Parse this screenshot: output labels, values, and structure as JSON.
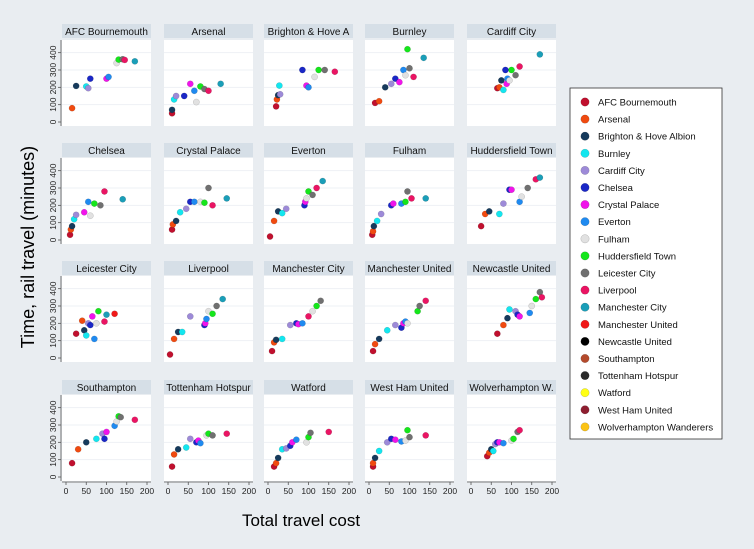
{
  "chart_data": {
    "type": "scatter",
    "layout": "small-multiples",
    "xlabel": "Total travel cost",
    "ylabel": "Time, rail travel (minutes)",
    "x_ticks": [
      0,
      50,
      100,
      150,
      200
    ],
    "y_ticks": [
      0,
      100,
      200,
      300,
      400
    ],
    "xlim": [
      0,
      200
    ],
    "ylim": [
      0,
      450
    ],
    "legend_position": "right",
    "teams": [
      {
        "name": "AFC Bournemouth",
        "color": "#c0102e"
      },
      {
        "name": "Arsenal",
        "color": "#f04a10"
      },
      {
        "name": "Brighton & Hove Albion",
        "color": "#163a5c"
      },
      {
        "name": "Burnley",
        "color": "#13e6ef"
      },
      {
        "name": "Cardiff City",
        "color": "#9d8ad8"
      },
      {
        "name": "Chelsea",
        "color": "#1a27c6"
      },
      {
        "name": "Crystal Palace",
        "color": "#f014ea"
      },
      {
        "name": "Everton",
        "color": "#1f8af0"
      },
      {
        "name": "Fulham",
        "color": "#e1e1e1"
      },
      {
        "name": "Huddersfield Town",
        "color": "#15e61b"
      },
      {
        "name": "Leicester City",
        "color": "#707070"
      },
      {
        "name": "Liverpool",
        "color": "#ea1463"
      },
      {
        "name": "Manchester City",
        "color": "#1a9eb8"
      },
      {
        "name": "Manchester United",
        "color": "#f01818"
      },
      {
        "name": "Newcastle United",
        "color": "#000000"
      },
      {
        "name": "Southampton",
        "color": "#b44a2c"
      },
      {
        "name": "Tottenham Hotspur",
        "color": "#2a2a2a"
      },
      {
        "name": "Watford",
        "color": "#ffff14"
      },
      {
        "name": "West Ham United",
        "color": "#8e1e30"
      },
      {
        "name": "Wolverhampton Wanderers",
        "color": "#fbc316"
      }
    ],
    "panels": [
      {
        "title": "AFC Bournemouth",
        "points": [
          [
            15,
            80
          ],
          [
            25,
            208
          ],
          [
            50,
            205
          ],
          [
            55,
            195
          ],
          [
            60,
            250
          ],
          [
            100,
            250
          ],
          [
            105,
            260
          ],
          [
            125,
            340
          ],
          [
            130,
            360
          ],
          [
            140,
            362
          ],
          [
            145,
            358
          ],
          [
            170,
            350
          ]
        ]
      },
      {
        "title": "Arsenal",
        "points": [
          [
            10,
            50
          ],
          [
            10,
            70
          ],
          [
            15,
            130
          ],
          [
            20,
            150
          ],
          [
            40,
            150
          ],
          [
            55,
            220
          ],
          [
            65,
            180
          ],
          [
            70,
            115
          ],
          [
            80,
            205
          ],
          [
            90,
            190
          ],
          [
            100,
            180
          ],
          [
            130,
            220
          ]
        ]
      },
      {
        "title": "Brighton & Hove A",
        "points": [
          [
            20,
            90
          ],
          [
            22,
            130
          ],
          [
            25,
            155
          ],
          [
            28,
            210
          ],
          [
            30,
            160
          ],
          [
            85,
            300
          ],
          [
            95,
            210
          ],
          [
            100,
            200
          ],
          [
            115,
            260
          ],
          [
            125,
            300
          ],
          [
            140,
            300
          ],
          [
            165,
            290
          ]
        ]
      },
      {
        "title": "Burnley",
        "points": [
          [
            15,
            110
          ],
          [
            25,
            120
          ],
          [
            40,
            200
          ],
          [
            55,
            220
          ],
          [
            65,
            250
          ],
          [
            75,
            230
          ],
          [
            85,
            300
          ],
          [
            90,
            270
          ],
          [
            95,
            420
          ],
          [
            100,
            310
          ],
          [
            110,
            260
          ],
          [
            135,
            370
          ]
        ]
      },
      {
        "title": "Cardiff City",
        "points": [
          [
            65,
            195
          ],
          [
            70,
            200
          ],
          [
            75,
            240
          ],
          [
            80,
            185
          ],
          [
            85,
            300
          ],
          [
            88,
            220
          ],
          [
            90,
            250
          ],
          [
            95,
            240
          ],
          [
            100,
            300
          ],
          [
            110,
            270
          ],
          [
            120,
            320
          ],
          [
            170,
            390
          ]
        ]
      },
      {
        "title": "Chelsea",
        "points": [
          [
            10,
            30
          ],
          [
            12,
            60
          ],
          [
            15,
            80
          ],
          [
            20,
            120
          ],
          [
            25,
            145
          ],
          [
            45,
            160
          ],
          [
            55,
            220
          ],
          [
            60,
            140
          ],
          [
            70,
            210
          ],
          [
            85,
            200
          ],
          [
            95,
            280
          ],
          [
            140,
            235
          ]
        ]
      },
      {
        "title": "Crystal Palace",
        "points": [
          [
            10,
            60
          ],
          [
            12,
            90
          ],
          [
            20,
            110
          ],
          [
            30,
            160
          ],
          [
            45,
            180
          ],
          [
            55,
            220
          ],
          [
            65,
            220
          ],
          [
            80,
            220
          ],
          [
            90,
            215
          ],
          [
            100,
            300
          ],
          [
            110,
            200
          ],
          [
            145,
            240
          ]
        ]
      },
      {
        "title": "Everton",
        "points": [
          [
            5,
            20
          ],
          [
            15,
            110
          ],
          [
            25,
            165
          ],
          [
            35,
            155
          ],
          [
            45,
            180
          ],
          [
            90,
            200
          ],
          [
            92,
            220
          ],
          [
            95,
            240
          ],
          [
            100,
            280
          ],
          [
            110,
            260
          ],
          [
            120,
            300
          ],
          [
            135,
            340
          ]
        ]
      },
      {
        "title": "Fulham",
        "points": [
          [
            8,
            30
          ],
          [
            10,
            50
          ],
          [
            12,
            80
          ],
          [
            20,
            110
          ],
          [
            30,
            150
          ],
          [
            55,
            200
          ],
          [
            60,
            210
          ],
          [
            80,
            210
          ],
          [
            90,
            220
          ],
          [
            95,
            280
          ],
          [
            105,
            240
          ],
          [
            140,
            240
          ]
        ]
      },
      {
        "title": "Huddersfield Town",
        "points": [
          [
            25,
            80
          ],
          [
            35,
            150
          ],
          [
            45,
            165
          ],
          [
            70,
            150
          ],
          [
            80,
            210
          ],
          [
            95,
            290
          ],
          [
            100,
            290
          ],
          [
            120,
            220
          ],
          [
            125,
            250
          ],
          [
            140,
            300
          ],
          [
            160,
            350
          ],
          [
            170,
            360
          ]
        ]
      },
      {
        "title": "Leicester City",
        "points": [
          [
            25,
            140
          ],
          [
            40,
            215
          ],
          [
            45,
            160
          ],
          [
            50,
            130
          ],
          [
            55,
            200
          ],
          [
            60,
            190
          ],
          [
            65,
            240
          ],
          [
            70,
            110
          ],
          [
            75,
            200
          ],
          [
            80,
            270
          ],
          [
            95,
            210
          ],
          [
            100,
            250
          ],
          [
            120,
            255
          ]
        ]
      },
      {
        "title": "Liverpool",
        "points": [
          [
            5,
            20
          ],
          [
            15,
            110
          ],
          [
            25,
            150
          ],
          [
            35,
            150
          ],
          [
            55,
            240
          ],
          [
            90,
            190
          ],
          [
            92,
            200
          ],
          [
            95,
            225
          ],
          [
            100,
            270
          ],
          [
            110,
            255
          ],
          [
            120,
            300
          ],
          [
            135,
            340
          ]
        ]
      },
      {
        "title": "Manchester City",
        "points": [
          [
            10,
            40
          ],
          [
            15,
            90
          ],
          [
            20,
            105
          ],
          [
            35,
            110
          ],
          [
            55,
            190
          ],
          [
            70,
            200
          ],
          [
            75,
            195
          ],
          [
            85,
            200
          ],
          [
            110,
            270
          ],
          [
            120,
            300
          ],
          [
            130,
            330
          ],
          [
            100,
            240
          ]
        ]
      },
      {
        "title": "Manchester United",
        "points": [
          [
            10,
            40
          ],
          [
            15,
            80
          ],
          [
            25,
            110
          ],
          [
            45,
            160
          ],
          [
            65,
            190
          ],
          [
            80,
            175
          ],
          [
            85,
            200
          ],
          [
            90,
            210
          ],
          [
            95,
            200
          ],
          [
            120,
            270
          ],
          [
            125,
            300
          ],
          [
            140,
            330
          ]
        ]
      },
      {
        "title": "Newcastle United",
        "points": [
          [
            65,
            140
          ],
          [
            80,
            190
          ],
          [
            90,
            230
          ],
          [
            95,
            280
          ],
          [
            110,
            270
          ],
          [
            115,
            250
          ],
          [
            120,
            240
          ],
          [
            145,
            260
          ],
          [
            150,
            300
          ],
          [
            160,
            340
          ],
          [
            170,
            380
          ],
          [
            175,
            350
          ]
        ]
      },
      {
        "title": "Southampton",
        "points": [
          [
            15,
            80
          ],
          [
            30,
            160
          ],
          [
            50,
            200
          ],
          [
            75,
            220
          ],
          [
            90,
            250
          ],
          [
            95,
            220
          ],
          [
            100,
            260
          ],
          [
            120,
            295
          ],
          [
            125,
            320
          ],
          [
            130,
            350
          ],
          [
            135,
            345
          ],
          [
            170,
            330
          ]
        ]
      },
      {
        "title": "Tottenham Hotspur",
        "points": [
          [
            10,
            60
          ],
          [
            15,
            130
          ],
          [
            25,
            160
          ],
          [
            45,
            170
          ],
          [
            55,
            220
          ],
          [
            70,
            200
          ],
          [
            75,
            210
          ],
          [
            80,
            195
          ],
          [
            95,
            240
          ],
          [
            100,
            250
          ],
          [
            110,
            240
          ],
          [
            145,
            250
          ]
        ]
      },
      {
        "title": "Watford",
        "points": [
          [
            15,
            60
          ],
          [
            20,
            80
          ],
          [
            25,
            110
          ],
          [
            35,
            160
          ],
          [
            45,
            165
          ],
          [
            55,
            180
          ],
          [
            60,
            200
          ],
          [
            70,
            215
          ],
          [
            95,
            200
          ],
          [
            100,
            230
          ],
          [
            105,
            255
          ],
          [
            150,
            260
          ]
        ]
      },
      {
        "title": "West Ham United",
        "points": [
          [
            10,
            60
          ],
          [
            10,
            80
          ],
          [
            15,
            110
          ],
          [
            25,
            150
          ],
          [
            45,
            200
          ],
          [
            55,
            220
          ],
          [
            65,
            215
          ],
          [
            80,
            205
          ],
          [
            90,
            210
          ],
          [
            95,
            270
          ],
          [
            100,
            230
          ],
          [
            140,
            240
          ]
        ]
      },
      {
        "title": "Wolverhampton W.",
        "points": [
          [
            40,
            120
          ],
          [
            45,
            140
          ],
          [
            50,
            160
          ],
          [
            55,
            150
          ],
          [
            60,
            190
          ],
          [
            65,
            200
          ],
          [
            70,
            200
          ],
          [
            80,
            195
          ],
          [
            100,
            210
          ],
          [
            105,
            220
          ],
          [
            115,
            260
          ],
          [
            120,
            270
          ]
        ]
      }
    ]
  }
}
